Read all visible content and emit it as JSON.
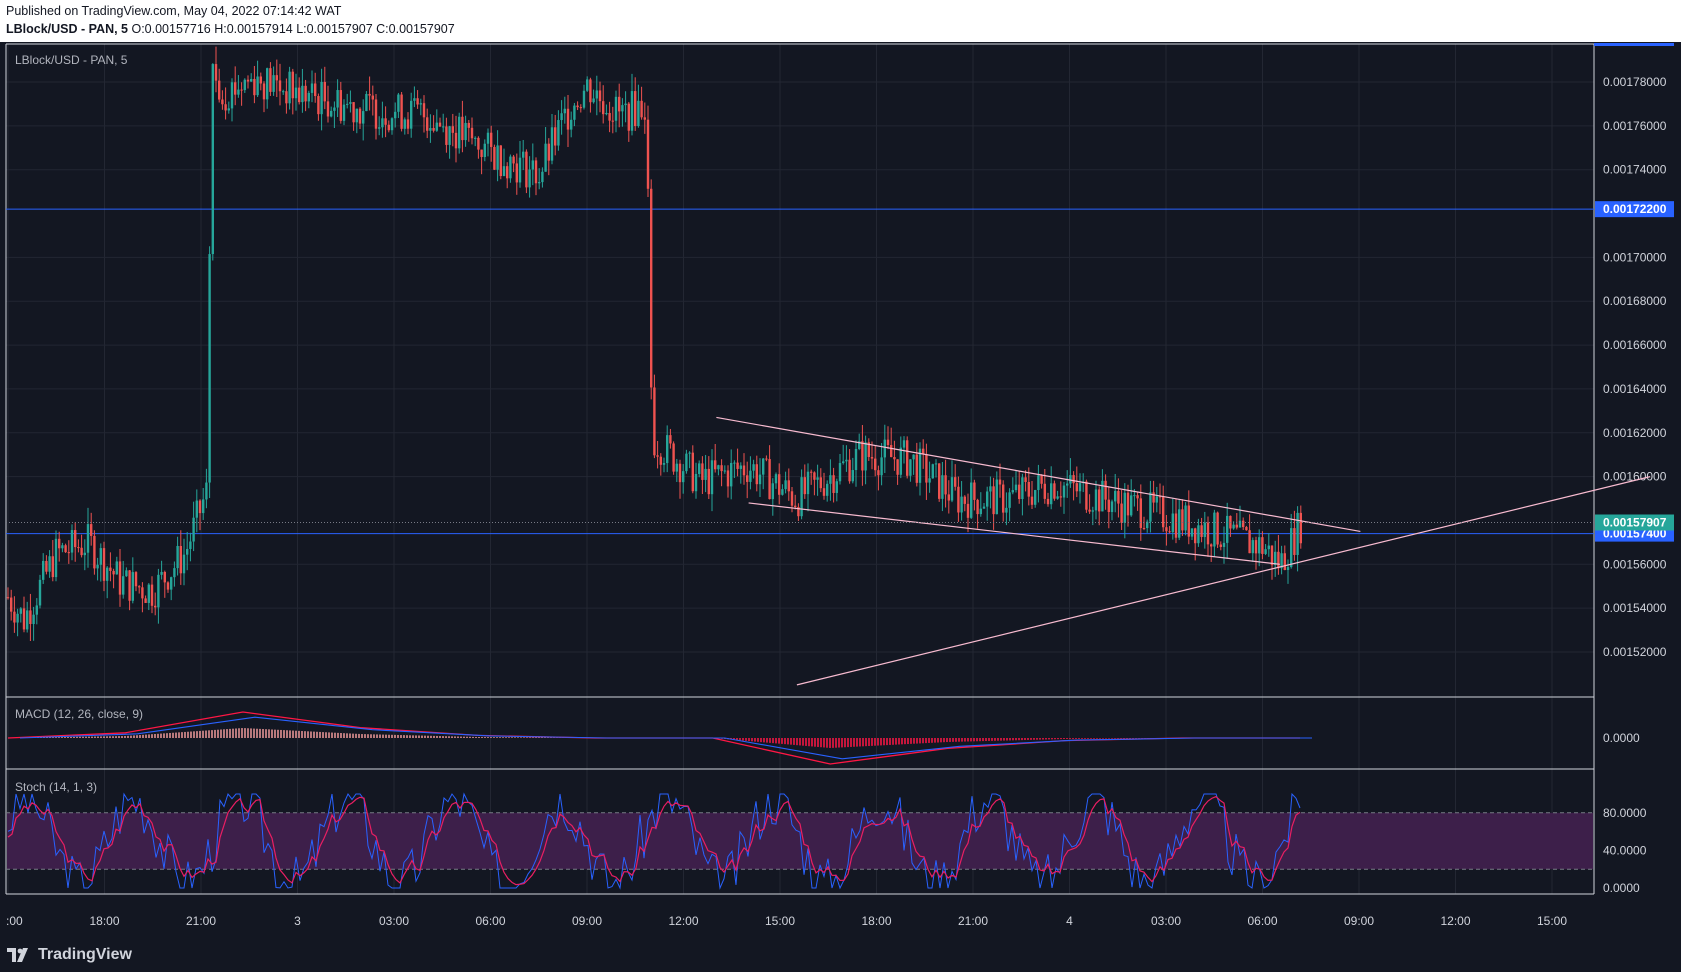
{
  "header": {
    "published": "Published on TradingView.com, May 04, 2022 07:14:42 WAT",
    "symbol_line": "LBlock/USD - PAN, 5",
    "ohlc": " O:0.00157716 H:0.00157914 L:0.00157907 C:0.00157907"
  },
  "footer": {
    "brand": "TradingView",
    "brand_icon": "tradingview-logo-icon"
  },
  "colors": {
    "background": "#131722",
    "grid": "#232733",
    "up": "#26a69a",
    "down": "#ef5350",
    "hline": "#2962ff",
    "trendline": "#f8bbd0",
    "macd": "#ff1744",
    "signal": "#2962ff",
    "stoch_k": "#2962ff",
    "stoch_d": "#e91e63",
    "stoch_band": "#3d1f4a"
  },
  "chart_data": [
    {
      "type": "candlestick",
      "title": "LBlock/USD - PAN, 5",
      "ylim": [
        0.0015,
        0.0018
      ],
      "y_ticks": [
        "0.00178000",
        "0.00176000",
        "0.00174000",
        "0.00172200",
        "0.00170000",
        "0.00168000",
        "0.00166000",
        "0.00164000",
        "0.00162000",
        "0.00160000",
        "0.00157907",
        "0.00157400",
        "0.00156000",
        "0.00154000",
        "0.00152000"
      ],
      "x_ticks": [
        ":00",
        "18:00",
        "21:00",
        "3",
        "03:00",
        "06:00",
        "09:00",
        "12:00",
        "15:00",
        "18:00",
        "21:00",
        "4",
        "03:00",
        "06:00",
        "09:00",
        "12:00",
        "15:00"
      ],
      "horizontal_lines": [
        {
          "value": 0.001722,
          "label": "0.00172200"
        },
        {
          "value": 0.001574,
          "label": "0.00157400"
        }
      ],
      "last_price": {
        "value": 0.00157907,
        "label": "0.00157907"
      },
      "trendlines": [
        {
          "name": "upper-channel",
          "points": [
            [
              "May 03 13:00",
              0.001627
            ],
            [
              "May 04 09:00",
              0.001575
            ]
          ]
        },
        {
          "name": "lower-channel",
          "points": [
            [
              "May 03 14:00",
              0.001588
            ],
            [
              "May 04 06:30",
              0.00156
            ]
          ]
        },
        {
          "name": "rising-support",
          "points": [
            [
              "May 03 15:30",
              0.001505
            ],
            [
              "May 04 18:00",
              0.0016
            ]
          ]
        }
      ],
      "price_path": [
        [
          "May 02 15:00",
          0.001545
        ],
        [
          "May 02 15:30",
          0.001535
        ],
        [
          "May 02 16:30",
          0.001565
        ],
        [
          "May 02 17:30",
          0.00157
        ],
        [
          "May 02 18:30",
          0.001552
        ],
        [
          "May 02 19:30",
          0.001548
        ],
        [
          "May 02 20:30",
          0.001565
        ],
        [
          "May 02 21:10",
          0.001593
        ],
        [
          "May 02 21:20",
          0.001785
        ],
        [
          "May 02 21:40",
          0.001775
        ],
        [
          "May 02 22:40",
          0.001782
        ],
        [
          "May 03 00:00",
          0.001775
        ],
        [
          "May 03 02:00",
          0.001768
        ],
        [
          "May 03 04:00",
          0.001765
        ],
        [
          "May 03 06:00",
          0.001748
        ],
        [
          "May 03 07:30",
          0.001738
        ],
        [
          "May 03 08:30",
          0.00177
        ],
        [
          "May 03 09:00",
          0.001778
        ],
        [
          "May 03 10:00",
          0.001765
        ],
        [
          "May 03 10:50",
          0.00177
        ],
        [
          "May 03 11:00",
          0.001618
        ],
        [
          "May 03 12:30",
          0.001598
        ],
        [
          "May 03 14:00",
          0.001605
        ],
        [
          "May 03 15:30",
          0.00159
        ],
        [
          "May 03 17:30",
          0.00161
        ],
        [
          "May 03 19:00",
          0.001608
        ],
        [
          "May 03 20:30",
          0.00159
        ],
        [
          "May 03 22:00",
          0.00159
        ],
        [
          "May 03 23:30",
          0.001597
        ],
        [
          "May 04 01:30",
          0.001588
        ],
        [
          "May 04 03:00",
          0.001582
        ],
        [
          "May 04 04:30",
          0.001575
        ],
        [
          "May 04 06:00",
          0.001568
        ],
        [
          "May 04 06:30",
          0.00156
        ],
        [
          "May 04 07:10",
          0.00157907
        ]
      ]
    },
    {
      "type": "line",
      "title": "MACD (12, 26, close, 9)",
      "y_ticks": [
        "0.0000"
      ],
      "series": [
        {
          "name": "MACD",
          "values": [
            0,
            0.2,
            1.0,
            0.4,
            0.1,
            0,
            0,
            -1.0,
            -0.4,
            -0.1,
            0,
            0
          ]
        }
      ]
    },
    {
      "type": "line",
      "title": "Stoch (14, 1, 3)",
      "ylim": [
        0,
        100
      ],
      "band": [
        20,
        80
      ],
      "y_ticks": [
        "80.0000",
        "40.0000",
        "0.0000"
      ]
    }
  ]
}
